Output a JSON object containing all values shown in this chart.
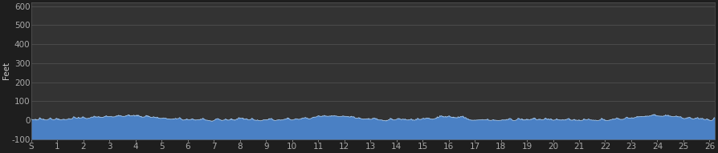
{
  "background_color": "#1e1e1e",
  "plot_bg_color": "#333333",
  "fill_color": "#4a80c4",
  "line_color": "#b0cce8",
  "ylabel": "Feet",
  "ylim": [
    -100,
    620
  ],
  "xlim": [
    0,
    26.2
  ],
  "yticks": [
    -100,
    0,
    100,
    200,
    300,
    400,
    500,
    600
  ],
  "xtick_labels": [
    "S",
    "1",
    "2",
    "3",
    "4",
    "5",
    "6",
    "7",
    "8",
    "9",
    "10",
    "11",
    "12",
    "13",
    "14",
    "15",
    "16",
    "17",
    "18",
    "19",
    "20",
    "21",
    "22",
    "23",
    "24",
    "25",
    "26"
  ],
  "xtick_positions": [
    0,
    1,
    2,
    3,
    4,
    5,
    6,
    7,
    8,
    9,
    10,
    11,
    12,
    13,
    14,
    15,
    16,
    17,
    18,
    19,
    20,
    21,
    22,
    23,
    24,
    25,
    26
  ],
  "grid_color": "#555555",
  "text_color": "#cccccc",
  "tick_color": "#aaaaaa",
  "font_size": 7.5,
  "ylabel_fontsize": 7.5,
  "seed": 10,
  "n_points": 2000,
  "base_elevation": 2,
  "noise_scale": 8,
  "peak_scale": 18,
  "figwidth": 8.94,
  "figheight": 1.91,
  "dpi": 100
}
